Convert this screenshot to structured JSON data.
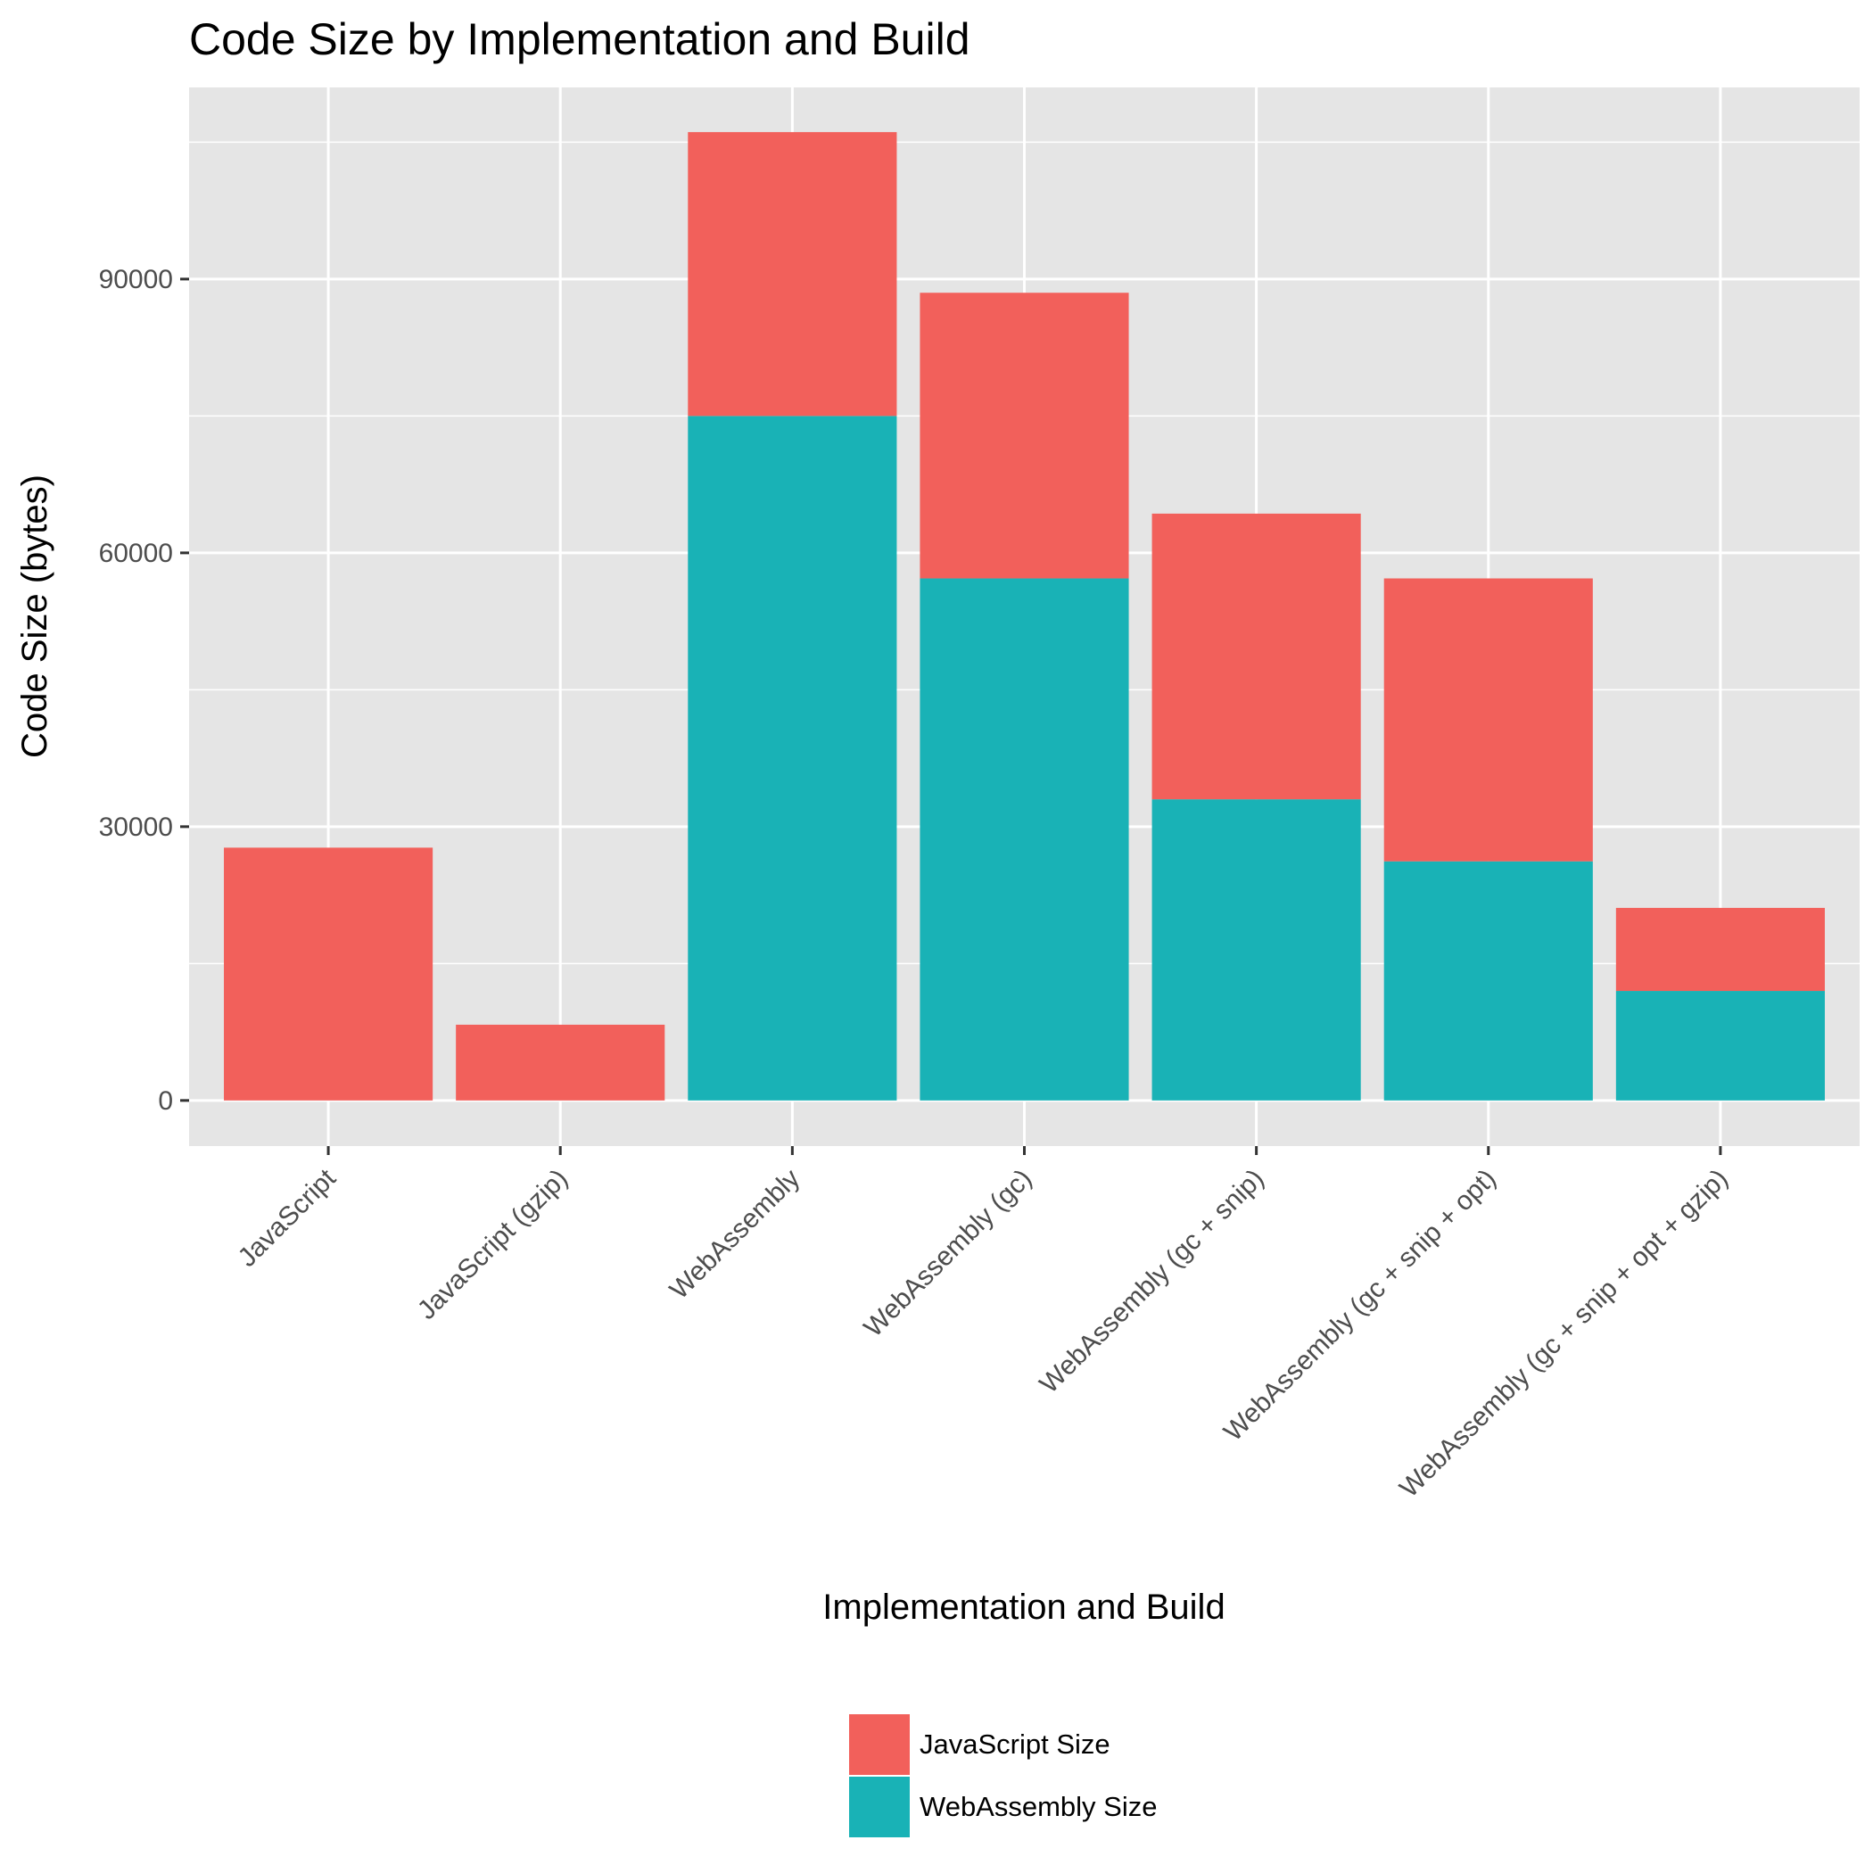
{
  "chart_data": {
    "type": "bar",
    "stacked": true,
    "title": "Code Size by Implementation and Build",
    "xlabel": "Implementation and Build",
    "ylabel": "Code Size (bytes)",
    "categories": [
      "JavaScript",
      "JavaScript (gzip)",
      "WebAssembly",
      "WebAssembly (gc)",
      "WebAssembly (gc + snip)",
      "WebAssembly (gc + snip + opt)",
      "WebAssembly (gc + snip + opt + gzip)"
    ],
    "series": [
      {
        "name": "WebAssembly Size",
        "color": "#19b2b6",
        "values": [
          0,
          0,
          75000,
          57200,
          33000,
          26200,
          12000
        ]
      },
      {
        "name": "JavaScript Size",
        "color": "#f2605b",
        "values": [
          27700,
          8300,
          31100,
          31300,
          31300,
          31000,
          9100
        ]
      }
    ],
    "ylim": [
      -5000,
      111000
    ],
    "yticks": [
      0,
      30000,
      60000,
      90000
    ],
    "ytick_labels": [
      "0",
      "30000",
      "60000",
      "90000"
    ],
    "legend_position": "bottom",
    "legend": [
      "JavaScript Size",
      "WebAssembly Size"
    ],
    "grid": true
  },
  "colors": {
    "panel_background": "#e5e5e5",
    "grid_line": "#ffffff"
  }
}
